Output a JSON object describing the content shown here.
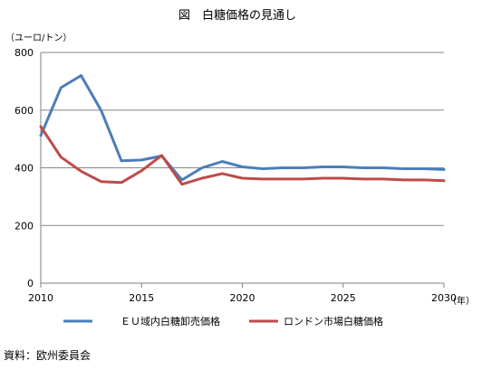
{
  "chart_data": {
    "type": "line",
    "title": "図　白糖価格の見通し",
    "ylabel": "（ユーロ/トン）",
    "xlabel": "（年）",
    "x": [
      2010,
      2011,
      2012,
      2013,
      2014,
      2015,
      2016,
      2017,
      2018,
      2019,
      2020,
      2021,
      2022,
      2023,
      2024,
      2025,
      2026,
      2027,
      2028,
      2029,
      2030
    ],
    "xticks": [
      "2010",
      "2015",
      "2020",
      "2025",
      "2030"
    ],
    "xtick_values": [
      2010,
      2015,
      2020,
      2025,
      2030
    ],
    "yticks": [
      "0",
      "200",
      "400",
      "600",
      "800"
    ],
    "ytick_values": [
      0,
      200,
      400,
      600,
      800
    ],
    "xlim": [
      2010,
      2030
    ],
    "ylim": [
      0,
      800
    ],
    "grid": true,
    "legend_position": "bottom",
    "series": [
      {
        "name": "ＥＵ域内白糖卸売価格",
        "color": "#4a7ebb",
        "values": [
          512,
          678,
          720,
          598,
          424,
          427,
          441,
          358,
          400,
          422,
          403,
          397,
          400,
          400,
          403,
          403,
          400,
          400,
          397,
          397,
          394
        ]
      },
      {
        "name": "ロンドン市場白糖価格",
        "color": "#be4b48",
        "values": [
          543,
          437,
          388,
          352,
          349,
          390,
          443,
          343,
          364,
          380,
          364,
          361,
          361,
          361,
          364,
          364,
          361,
          361,
          358,
          358,
          355
        ]
      }
    ]
  },
  "source": "資料：欧州委員会"
}
